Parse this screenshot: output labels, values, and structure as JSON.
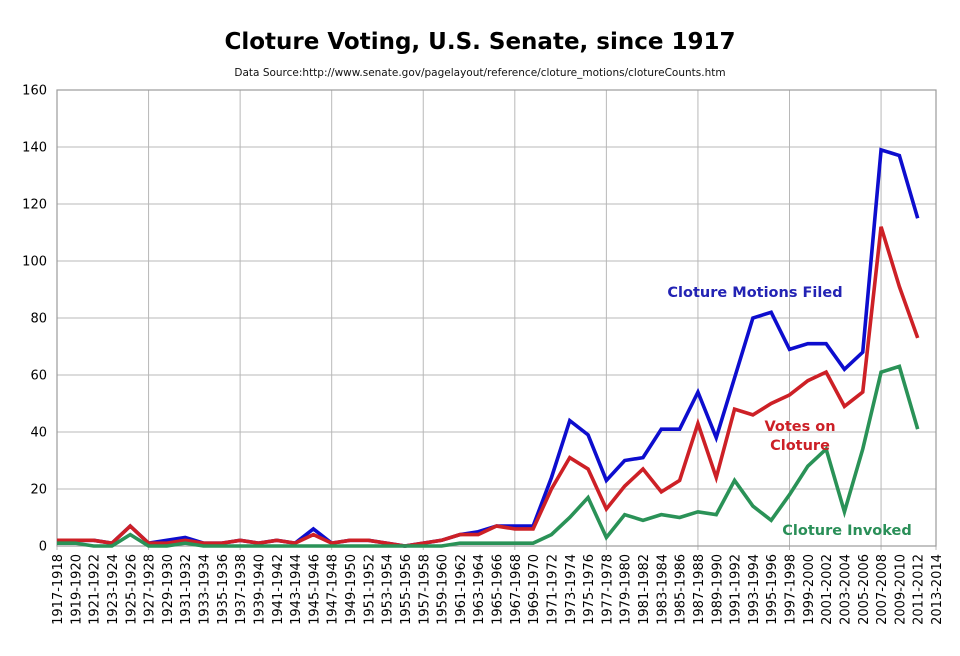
{
  "chart": {
    "title": "Cloture Voting, U.S. Senate, since 1917",
    "source": "Data Source:http://www.senate.gov/pagelayout/reference/cloture_motions/clotureCounts.htm"
  },
  "chart_data": {
    "type": "line",
    "title": "Cloture Voting, U.S. Senate, since 1917",
    "subtitle": "Data Source:http://www.senate.gov/pagelayout/reference/cloture_motions/clotureCounts.htm",
    "xlabel": "",
    "ylabel": "",
    "ylim": [
      0,
      160
    ],
    "ytick_step": 20,
    "grid": true,
    "legend_position": "inline-annotations",
    "axis_color": "#9b9b9b",
    "grid_color": "#b8b8b8",
    "tick_label_color": "#000000",
    "categories": [
      "1917-1918",
      "1919-1920",
      "1921-1922",
      "1923-1924",
      "1925-1926",
      "1927-1928",
      "1929-1930",
      "1931-1932",
      "1933-1934",
      "1935-1936",
      "1937-1938",
      "1939-1940",
      "1941-1942",
      "1943-1944",
      "1945-1946",
      "1947-1948",
      "1949-1950",
      "1951-1952",
      "1953-1954",
      "1955-1956",
      "1957-1958",
      "1959-1960",
      "1961-1962",
      "1963-1964",
      "1965-1966",
      "1967-1968",
      "1969-1970",
      "1971-1972",
      "1973-1974",
      "1975-1976",
      "1977-1978",
      "1979-1980",
      "1981-1982",
      "1983-1984",
      "1985-1986",
      "1987-1988",
      "1989-1990",
      "1991-1992",
      "1993-1994",
      "1995-1996",
      "1997-1998",
      "1999-2000",
      "2001-2002",
      "2003-2004",
      "2005-2006",
      "2007-2008",
      "2009-2010",
      "2011-2012",
      "2013-2014"
    ],
    "series": [
      {
        "name": "Cloture Motions Filed",
        "id": "cloture-motions-filed",
        "color": "#0d0dce",
        "label_color": "#2323b4",
        "values": [
          2,
          2,
          2,
          1,
          7,
          1,
          2,
          3,
          1,
          1,
          2,
          1,
          2,
          1,
          6,
          1,
          2,
          2,
          1,
          0,
          1,
          2,
          4,
          5,
          7,
          7,
          7,
          24,
          44,
          39,
          23,
          30,
          31,
          41,
          41,
          54,
          38,
          59,
          80,
          82,
          69,
          71,
          71,
          62,
          68,
          139,
          137,
          115,
          null
        ]
      },
      {
        "name": "Votes on Cloture",
        "id": "votes-on-cloture",
        "color": "#cd2026",
        "label_color": "#cc2027",
        "label_lines": [
          "Votes on",
          "Cloture"
        ],
        "values": [
          2,
          2,
          2,
          1,
          7,
          1,
          1,
          2,
          1,
          1,
          2,
          1,
          2,
          1,
          4,
          1,
          2,
          2,
          1,
          0,
          1,
          2,
          4,
          4,
          7,
          6,
          6,
          20,
          31,
          27,
          13,
          21,
          27,
          19,
          23,
          43,
          24,
          48,
          46,
          50,
          53,
          58,
          61,
          49,
          54,
          112,
          91,
          73,
          null
        ]
      },
      {
        "name": "Cloture Invoked",
        "id": "cloture-invoked",
        "color": "#2a9257",
        "label_color": "#2a8f58",
        "values": [
          1,
          1,
          0,
          0,
          4,
          0,
          0,
          1,
          0,
          0,
          0,
          0,
          0,
          0,
          0,
          0,
          0,
          0,
          0,
          0,
          0,
          0,
          1,
          1,
          1,
          1,
          1,
          4,
          10,
          17,
          3,
          11,
          9,
          11,
          10,
          12,
          11,
          23,
          14,
          9,
          18,
          28,
          34,
          12,
          34,
          61,
          63,
          41,
          null
        ]
      }
    ]
  }
}
